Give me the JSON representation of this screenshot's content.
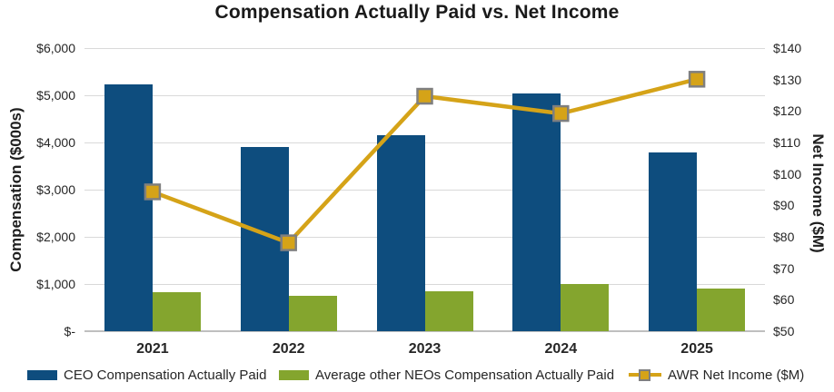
{
  "title": "Compensation Actually Paid vs. Net Income",
  "chart_data": {
    "type": "combo-bar-line",
    "title": "Compensation Actually Paid vs. Net Income",
    "categories": [
      "2021",
      "2022",
      "2023",
      "2024",
      "2025"
    ],
    "series": [
      {
        "name": "CEO Compensation Actually Paid",
        "type": "bar",
        "axis": "left",
        "color": "#0E4D7E",
        "values": [
          5230,
          3900,
          4160,
          5040,
          3780
        ]
      },
      {
        "name": "Average other NEOs Compensation Actually Paid",
        "type": "bar",
        "axis": "left",
        "color": "#84A52E",
        "values": [
          820,
          750,
          845,
          1000,
          910
        ]
      },
      {
        "name": "AWR Net Income ($M)",
        "type": "line",
        "axis": "right",
        "color": "#D5A318",
        "marker": "square",
        "marker_border_color": "#7F7F7F",
        "values": [
          94.3,
          78.1,
          124.7,
          119.2,
          130.1
        ]
      }
    ],
    "left_axis": {
      "label": "Compensation ($000s)",
      "min": 0,
      "max": 6000,
      "step": 1000,
      "tick_labels": [
        "$-",
        "$1,000",
        "$2,000",
        "$3,000",
        "$4,000",
        "$5,000",
        "$6,000"
      ]
    },
    "right_axis": {
      "label": "Net Income ($M)",
      "min": 50,
      "max": 140,
      "step": 10,
      "tick_labels": [
        "$50",
        "$60",
        "$70",
        "$80",
        "$90",
        "$100",
        "$110",
        "$120",
        "$130",
        "$140"
      ]
    },
    "grid": "horizontal gridlines at left-axis ticks",
    "legend_position": "bottom"
  },
  "colors": {
    "background": "#FFFFFF",
    "gridline": "#D9D9D9",
    "axis_line": "#BFBFBF",
    "text": "#262626"
  }
}
